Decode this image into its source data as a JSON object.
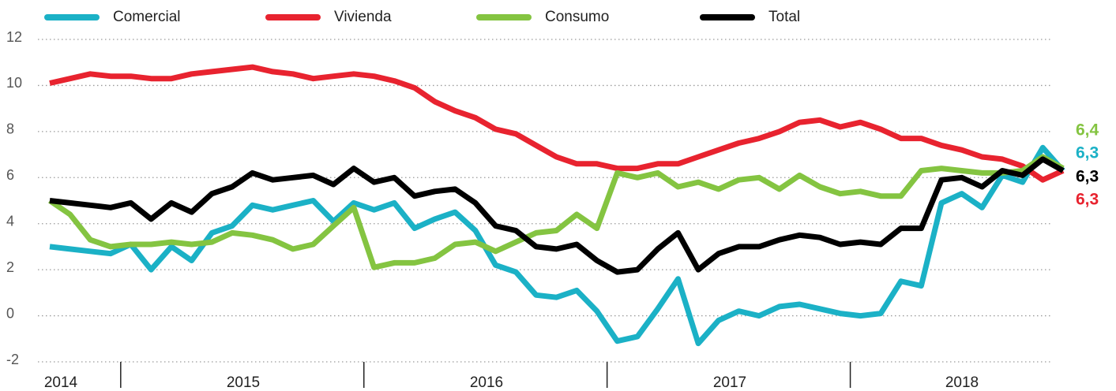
{
  "chart_data": {
    "type": "line",
    "categories": [
      null,
      null,
      null,
      null,
      null,
      null,
      null,
      null,
      null,
      null,
      null,
      null,
      null,
      null,
      null,
      null,
      null,
      null,
      null,
      null,
      null,
      null,
      null,
      null,
      null,
      null,
      null,
      null,
      null,
      null,
      null,
      null,
      null,
      null,
      null,
      null,
      null,
      null,
      null,
      null,
      null,
      null,
      null,
      null,
      null,
      null,
      null,
      null,
      null,
      null,
      null
    ],
    "year_labels": [
      "2014",
      "2015",
      "2016",
      "2017",
      "2018"
    ],
    "ylim": [
      -2,
      12
    ],
    "yticks": [
      -2,
      0,
      2,
      4,
      6,
      8,
      10,
      12
    ],
    "grid": true,
    "legend": "top",
    "series": [
      {
        "name": "Comercial",
        "color": "#1bb1c6",
        "end_label": "6,3",
        "values": [
          3.0,
          2.9,
          2.8,
          2.7,
          3.1,
          2.0,
          3.0,
          2.4,
          3.6,
          3.9,
          4.8,
          4.6,
          4.8,
          5.0,
          4.1,
          4.9,
          4.6,
          4.9,
          3.8,
          4.2,
          4.5,
          3.7,
          2.2,
          1.9,
          0.9,
          0.8,
          1.1,
          0.2,
          -1.1,
          -0.9,
          0.3,
          1.6,
          -1.2,
          -0.2,
          0.2,
          0.0,
          0.4,
          0.5,
          0.3,
          0.1,
          0.0,
          0.1,
          1.5,
          1.3,
          4.9,
          5.3,
          4.7,
          6.1,
          5.8,
          7.3,
          6.3
        ]
      },
      {
        "name": "Vivienda",
        "color": "#e8232f",
        "end_label": "6,3",
        "values": [
          10.1,
          10.3,
          10.5,
          10.4,
          10.4,
          10.3,
          10.3,
          10.5,
          10.6,
          10.7,
          10.8,
          10.6,
          10.5,
          10.3,
          10.4,
          10.5,
          10.4,
          10.2,
          9.9,
          9.3,
          8.9,
          8.6,
          8.1,
          7.9,
          7.4,
          6.9,
          6.6,
          6.6,
          6.4,
          6.4,
          6.6,
          6.6,
          6.9,
          7.2,
          7.5,
          7.7,
          8.0,
          8.4,
          8.5,
          8.2,
          8.4,
          8.1,
          7.7,
          7.7,
          7.4,
          7.2,
          6.9,
          6.8,
          6.5,
          5.9,
          6.3
        ]
      },
      {
        "name": "Consumo",
        "color": "#84c441",
        "end_label": "6,4",
        "values": [
          5.0,
          4.4,
          3.3,
          3.0,
          3.1,
          3.1,
          3.2,
          3.1,
          3.2,
          3.6,
          3.5,
          3.3,
          2.9,
          3.1,
          3.9,
          4.7,
          2.1,
          2.3,
          2.3,
          2.5,
          3.1,
          3.2,
          2.8,
          3.2,
          3.6,
          3.7,
          4.4,
          3.8,
          6.2,
          6.0,
          6.2,
          5.6,
          5.8,
          5.5,
          5.9,
          6.0,
          5.5,
          6.1,
          5.6,
          5.3,
          5.4,
          5.2,
          5.2,
          6.3,
          6.4,
          6.3,
          6.2,
          6.2,
          6.3,
          6.9,
          6.4
        ]
      },
      {
        "name": "Total",
        "color": "#000000",
        "end_label": "6,3",
        "values": [
          5.0,
          4.9,
          4.8,
          4.7,
          4.9,
          4.2,
          4.9,
          4.5,
          5.3,
          5.6,
          6.2,
          5.9,
          6.0,
          6.1,
          5.7,
          6.4,
          5.8,
          6.0,
          5.2,
          5.4,
          5.5,
          4.9,
          3.9,
          3.7,
          3.0,
          2.9,
          3.1,
          2.4,
          1.9,
          2.0,
          2.9,
          3.6,
          2.0,
          2.7,
          3.0,
          3.0,
          3.3,
          3.5,
          3.4,
          3.1,
          3.2,
          3.1,
          3.8,
          3.8,
          5.9,
          6.0,
          5.6,
          6.3,
          6.1,
          6.8,
          6.3
        ]
      }
    ]
  }
}
